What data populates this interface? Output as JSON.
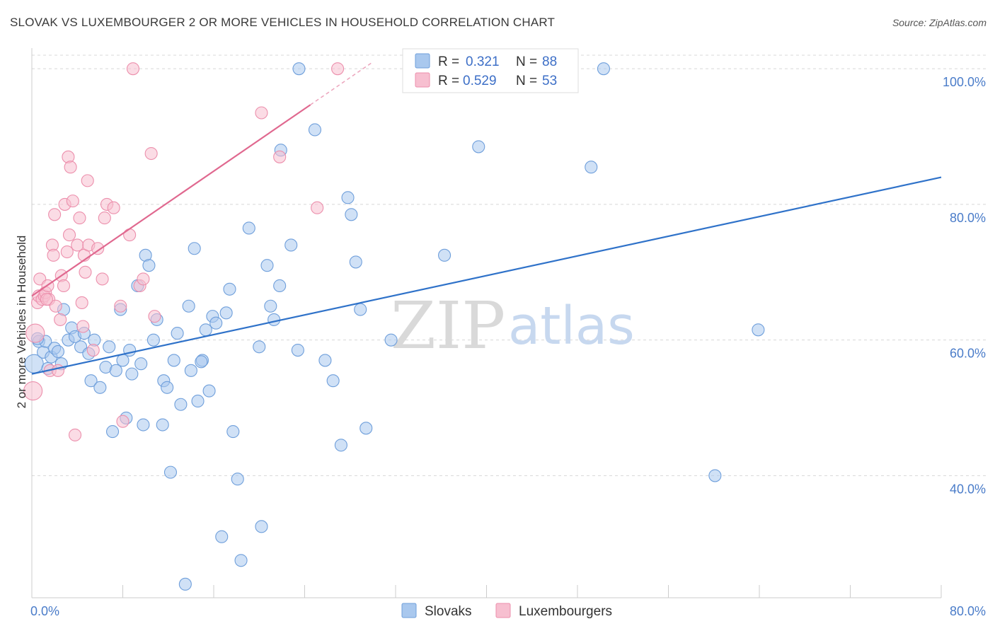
{
  "title": "SLOVAK VS LUXEMBOURGER 2 OR MORE VEHICLES IN HOUSEHOLD CORRELATION CHART",
  "source": "Source: ZipAtlas.com",
  "watermark": {
    "zip": "ZIP",
    "atlas": "atlas"
  },
  "colors": {
    "blue_fill": "#a9c8ee",
    "blue_stroke": "#6f9fdb",
    "blue_line": "#2f72c9",
    "pink_fill": "#f7bfd0",
    "pink_stroke": "#ec8fac",
    "pink_line": "#e0688f",
    "tick_blue": "#4a7cc9"
  },
  "legend": {
    "rows": [
      {
        "r_label": "R =",
        "r_value": "0.321",
        "n_label": "N =",
        "n_value": "88"
      },
      {
        "r_label": "R =",
        "r_value": "0.529",
        "n_label": "N =",
        "n_value": "53"
      }
    ]
  },
  "bottom_legend": [
    "Slovaks",
    "Luxembourgers"
  ],
  "chart_data": {
    "type": "scatter",
    "title": "SLOVAK VS LUXEMBOURGER 2 OR MORE VEHICLES IN HOUSEHOLD CORRELATION CHART",
    "xlabel": "",
    "ylabel": "2 or more Vehicles in Household",
    "xlim": [
      0,
      80
    ],
    "ylim": [
      22,
      102
    ],
    "x_tick_labels": [
      "0.0%",
      "80.0%"
    ],
    "y_ticks": [
      40,
      60,
      80,
      100
    ],
    "y_tick_labels": [
      "40.0%",
      "60.0%",
      "80.0%",
      "100.0%"
    ],
    "grid": true,
    "legend_position": "top-center",
    "series": [
      {
        "name": "Slovaks",
        "r": 0.321,
        "n": 88,
        "trend": {
          "x": [
            0,
            80
          ],
          "y": [
            55.0,
            84.0
          ]
        },
        "points": [
          [
            0.2,
            56.5
          ],
          [
            0.6,
            59.8
          ],
          [
            1.0,
            58.2
          ],
          [
            1.2,
            59.8
          ],
          [
            1.4,
            55.8
          ],
          [
            1.7,
            57.5
          ],
          [
            2.0,
            58.8
          ],
          [
            2.3,
            58.3
          ],
          [
            2.6,
            56.5
          ],
          [
            2.8,
            64.5
          ],
          [
            3.2,
            60.0
          ],
          [
            3.5,
            61.8
          ],
          [
            3.8,
            60.5
          ],
          [
            4.3,
            59.0
          ],
          [
            4.6,
            61.0
          ],
          [
            5.0,
            58.0
          ],
          [
            5.2,
            54.0
          ],
          [
            5.5,
            60.0
          ],
          [
            6.0,
            53.0
          ],
          [
            6.5,
            56.0
          ],
          [
            6.8,
            59.0
          ],
          [
            7.1,
            46.5
          ],
          [
            7.4,
            55.5
          ],
          [
            7.8,
            64.5
          ],
          [
            8.0,
            57.0
          ],
          [
            8.3,
            48.5
          ],
          [
            8.6,
            58.5
          ],
          [
            8.8,
            55.0
          ],
          [
            9.3,
            68.0
          ],
          [
            9.6,
            56.5
          ],
          [
            9.8,
            47.5
          ],
          [
            10.0,
            72.5
          ],
          [
            10.3,
            71.0
          ],
          [
            10.7,
            60.0
          ],
          [
            11.0,
            63.0
          ],
          [
            11.5,
            47.5
          ],
          [
            11.6,
            54.0
          ],
          [
            11.9,
            53.0
          ],
          [
            12.2,
            40.5
          ],
          [
            12.5,
            57.0
          ],
          [
            12.8,
            61.0
          ],
          [
            13.1,
            50.5
          ],
          [
            13.5,
            24.0
          ],
          [
            13.8,
            65.0
          ],
          [
            14.0,
            55.5
          ],
          [
            14.3,
            73.5
          ],
          [
            14.6,
            51.0
          ],
          [
            15.0,
            57.0
          ],
          [
            15.3,
            61.5
          ],
          [
            15.6,
            52.5
          ],
          [
            15.9,
            63.5
          ],
          [
            16.2,
            62.5
          ],
          [
            16.7,
            31.0
          ],
          [
            17.1,
            64.0
          ],
          [
            17.4,
            67.5
          ],
          [
            17.7,
            46.5
          ],
          [
            18.1,
            39.5
          ],
          [
            18.4,
            27.5
          ],
          [
            19.1,
            76.5
          ],
          [
            20.0,
            59.0
          ],
          [
            20.2,
            32.5
          ],
          [
            20.7,
            71.0
          ],
          [
            21.0,
            65.0
          ],
          [
            21.3,
            63.0
          ],
          [
            21.8,
            68.0
          ],
          [
            21.9,
            88.0
          ],
          [
            22.8,
            74.0
          ],
          [
            23.4,
            58.5
          ],
          [
            23.5,
            100.0
          ],
          [
            24.9,
            91.0
          ],
          [
            25.8,
            57.0
          ],
          [
            26.5,
            54.0
          ],
          [
            27.2,
            44.5
          ],
          [
            27.8,
            81.0
          ],
          [
            28.1,
            78.5
          ],
          [
            28.5,
            71.5
          ],
          [
            28.9,
            64.5
          ],
          [
            29.4,
            47.0
          ],
          [
            31.6,
            60.0
          ],
          [
            36.3,
            72.5
          ],
          [
            38.2,
            100.0
          ],
          [
            39.3,
            88.5
          ],
          [
            49.2,
            85.5
          ],
          [
            50.3,
            100.0
          ],
          [
            60.1,
            40.0
          ],
          [
            63.9,
            61.5
          ],
          [
            0.5,
            60.2
          ],
          [
            14.9,
            56.8
          ]
        ]
      },
      {
        "name": "Luxembourgers",
        "r": 0.529,
        "n": 53,
        "trend": {
          "x": [
            0,
            30
          ],
          "y": [
            66.5,
            101.0
          ]
        },
        "points": [
          [
            0.1,
            52.5
          ],
          [
            0.3,
            61.0
          ],
          [
            0.5,
            65.5
          ],
          [
            0.6,
            66.5
          ],
          [
            0.7,
            69.0
          ],
          [
            0.9,
            66.0
          ],
          [
            1.1,
            66.5
          ],
          [
            1.2,
            67.0
          ],
          [
            1.4,
            68.0
          ],
          [
            1.5,
            66.0
          ],
          [
            1.6,
            55.5
          ],
          [
            1.8,
            74.0
          ],
          [
            1.9,
            72.5
          ],
          [
            2.0,
            78.5
          ],
          [
            2.1,
            65.0
          ],
          [
            2.3,
            55.5
          ],
          [
            2.5,
            63.0
          ],
          [
            2.6,
            69.5
          ],
          [
            2.8,
            68.0
          ],
          [
            2.9,
            80.0
          ],
          [
            3.1,
            73.0
          ],
          [
            3.2,
            87.0
          ],
          [
            3.3,
            75.5
          ],
          [
            3.4,
            85.5
          ],
          [
            3.6,
            80.5
          ],
          [
            3.8,
            46.0
          ],
          [
            4.0,
            74.0
          ],
          [
            4.2,
            78.0
          ],
          [
            4.4,
            65.5
          ],
          [
            4.6,
            72.5
          ],
          [
            4.7,
            70.0
          ],
          [
            4.9,
            83.5
          ],
          [
            5.0,
            74.0
          ],
          [
            5.4,
            58.5
          ],
          [
            5.8,
            73.5
          ],
          [
            6.2,
            69.0
          ],
          [
            6.4,
            78.0
          ],
          [
            6.6,
            80.0
          ],
          [
            7.2,
            79.5
          ],
          [
            7.8,
            65.0
          ],
          [
            8.0,
            48.0
          ],
          [
            8.6,
            75.5
          ],
          [
            8.9,
            100.0
          ],
          [
            9.5,
            68.0
          ],
          [
            9.8,
            69.0
          ],
          [
            10.5,
            87.5
          ],
          [
            10.8,
            63.5
          ],
          [
            20.2,
            93.5
          ],
          [
            21.8,
            87.0
          ],
          [
            25.1,
            79.5
          ],
          [
            26.9,
            100.0
          ],
          [
            4.5,
            62.0
          ],
          [
            1.3,
            66.0
          ]
        ]
      }
    ]
  }
}
